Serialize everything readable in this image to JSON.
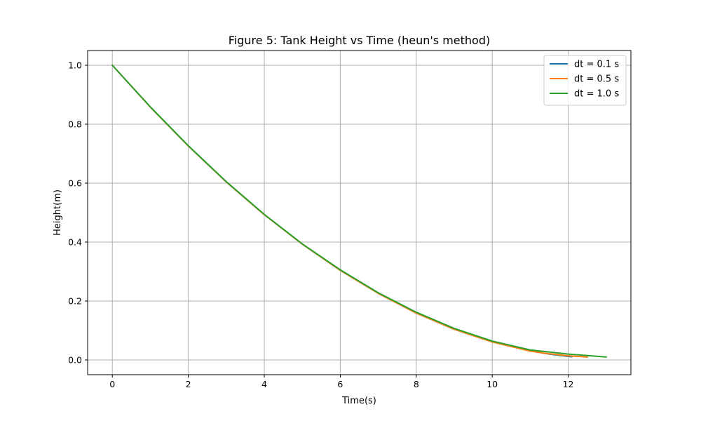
{
  "chart_data": {
    "type": "line",
    "title": "Figure 5: Tank Height vs Time (heun's method)",
    "xlabel": "Time(s)",
    "ylabel": "Height(m)",
    "xlim": [
      -0.65,
      13.65
    ],
    "ylim": [
      -0.05,
      1.05
    ],
    "xticks": [
      0,
      2,
      4,
      6,
      8,
      10,
      12
    ],
    "yticks": [
      0.0,
      0.2,
      0.4,
      0.6,
      0.8,
      1.0
    ],
    "xtick_labels": [
      "0",
      "2",
      "4",
      "6",
      "8",
      "10",
      "12"
    ],
    "ytick_labels": [
      "0.0",
      "0.2",
      "0.4",
      "0.6",
      "0.8",
      "1.0"
    ],
    "grid": true,
    "legend": "top-right",
    "series": [
      {
        "name": "dt = 0.1 s",
        "color": "#1f77b4",
        "x": [
          0,
          1,
          2,
          3,
          4,
          5,
          6,
          7,
          8,
          9,
          10,
          11,
          11.5,
          12,
          12.1
        ],
        "y": [
          1.0,
          0.858,
          0.726,
          0.604,
          0.493,
          0.393,
          0.304,
          0.226,
          0.159,
          0.104,
          0.062,
          0.031,
          0.02,
          0.012,
          0.011
        ]
      },
      {
        "name": "dt = 0.5 s",
        "color": "#ff7f0e",
        "x": [
          0,
          1,
          2,
          3,
          4,
          5,
          6,
          7,
          8,
          9,
          10,
          11,
          11.5,
          12,
          12.5
        ],
        "y": [
          1.0,
          0.858,
          0.726,
          0.604,
          0.493,
          0.393,
          0.304,
          0.226,
          0.159,
          0.104,
          0.061,
          0.03,
          0.021,
          0.014,
          0.01
        ]
      },
      {
        "name": "dt = 1.0 s",
        "color": "#2ca02c",
        "x": [
          0,
          1,
          2,
          3,
          4,
          5,
          6,
          7,
          8,
          9,
          10,
          11,
          12,
          13
        ],
        "y": [
          1.0,
          0.859,
          0.727,
          0.605,
          0.494,
          0.394,
          0.306,
          0.228,
          0.162,
          0.107,
          0.064,
          0.034,
          0.02,
          0.01
        ]
      }
    ]
  }
}
